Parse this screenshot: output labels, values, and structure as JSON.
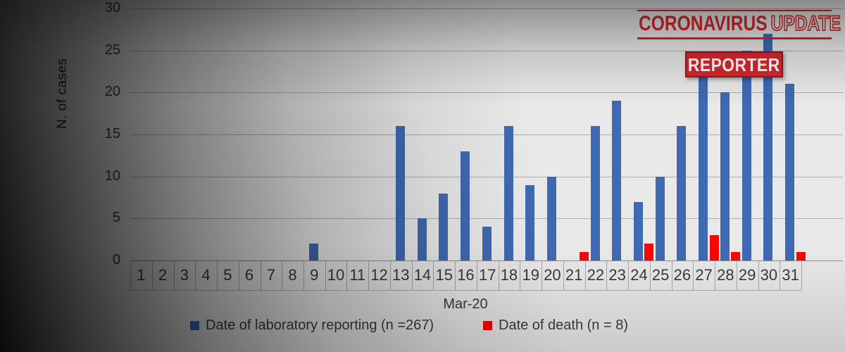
{
  "logo": {
    "title_strong": "CORONAVIRUS",
    "title_light": "UPDATE",
    "badge": "REPORTER",
    "red": "#d7282d"
  },
  "chart_data": {
    "type": "bar",
    "title": "",
    "xlabel": "Mar-20",
    "ylabel": "N. of cases",
    "ylim": [
      0,
      30
    ],
    "y_ticks": [
      0,
      5,
      10,
      15,
      20,
      25,
      30
    ],
    "grid": true,
    "legend_position": "bottom",
    "categories": [
      "1",
      "2",
      "3",
      "4",
      "5",
      "6",
      "7",
      "8",
      "9",
      "10",
      "11",
      "12",
      "13",
      "14",
      "15",
      "16",
      "17",
      "18",
      "19",
      "20",
      "21",
      "22",
      "23",
      "24",
      "25",
      "26",
      "27",
      "28",
      "29",
      "30",
      "31"
    ],
    "series": [
      {
        "name": "Date of laboratory reporting (n =267)",
        "color": "#3f69b1",
        "values": [
          0,
          0,
          0,
          0,
          0,
          0,
          0,
          0,
          2,
          0,
          0,
          0,
          16,
          5,
          8,
          13,
          4,
          16,
          9,
          10,
          0,
          16,
          19,
          7,
          10,
          16,
          23,
          20,
          25,
          27,
          21
        ]
      },
      {
        "name": "Date of death (n = 8)",
        "color": "#f70707",
        "values": [
          0,
          0,
          0,
          0,
          0,
          0,
          0,
          0,
          0,
          0,
          0,
          0,
          0,
          0,
          0,
          0,
          0,
          0,
          0,
          0,
          1,
          0,
          0,
          2,
          0,
          0,
          3,
          1,
          0,
          0,
          1
        ]
      }
    ]
  }
}
